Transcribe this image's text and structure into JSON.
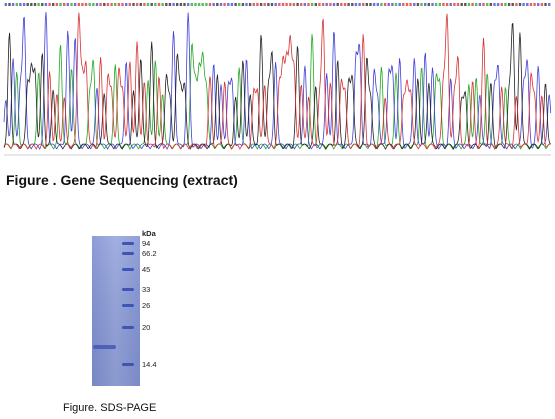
{
  "sequencing": {
    "caption": "Figure . Gene Sequencing (extract)",
    "trace_colors": {
      "A": "#22a822",
      "C": "#4040d8",
      "G": "#222222",
      "T": "#d83232"
    }
  },
  "sds_page": {
    "caption": "Figure. SDS-PAGE",
    "unit_label": "kDa",
    "marker_labels": [
      "94",
      "66.2",
      "45",
      "33",
      "26",
      "20",
      "14.4"
    ],
    "gel_color": "#8a9ad8",
    "band_color": "#3f54b4"
  }
}
